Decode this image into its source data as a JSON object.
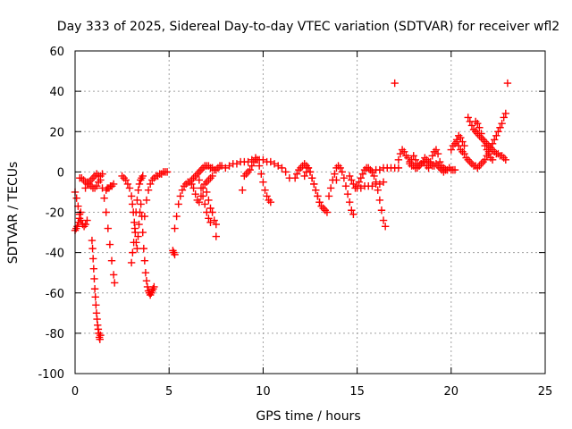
{
  "chart_data": {
    "type": "scatter",
    "title": "Day 333 of 2025, Sidereal Day-to-day VTEC variation (SDTVAR) for receiver wfl2",
    "xlabel": "GPS time / hours",
    "ylabel": "SDTVAR / TECUs",
    "xlim": [
      0,
      25
    ],
    "ylim": [
      -100,
      60
    ],
    "xticks": [
      0,
      5,
      10,
      15,
      20,
      25
    ],
    "yticks": [
      -100,
      -80,
      -60,
      -40,
      -20,
      0,
      20,
      40,
      60
    ],
    "xtick_labels": [
      "0",
      "5",
      "10",
      "15",
      "20",
      "25"
    ],
    "ytick_labels": [
      "-100",
      "-80",
      "-60",
      "-40",
      "-20",
      "0",
      "20",
      "40",
      "60"
    ],
    "grid": true,
    "marker": "+",
    "color": "#ff0000",
    "series": [
      {
        "x": [
          0.0,
          0.08,
          0.16,
          0.24,
          0.32,
          0.4,
          0.48,
          0.56,
          0.64
        ],
        "y": [
          -10,
          -13,
          -17,
          -21,
          -24,
          -26,
          -27,
          -26,
          -24
        ]
      },
      {
        "x": [
          0.0,
          0.06,
          0.12,
          0.18,
          0.24,
          0.3
        ],
        "y": [
          -29,
          -28,
          -27,
          -25,
          -23,
          -20
        ]
      },
      {
        "x": [
          0.25,
          0.35,
          0.45,
          0.55,
          0.65,
          0.75,
          0.85,
          0.95,
          1.05,
          1.15,
          1.25,
          1.35,
          1.45
        ],
        "y": [
          -3,
          -3,
          -4,
          -5,
          -5,
          -6,
          -7,
          -8,
          -8,
          -7,
          -5,
          -2,
          -1
        ]
      },
      {
        "x": [
          0.9,
          0.93,
          0.96,
          0.99,
          1.02,
          1.05,
          1.08,
          1.11,
          1.14,
          1.17,
          1.2,
          1.23,
          1.26,
          1.29,
          1.32,
          1.35
        ],
        "y": [
          -34,
          -38,
          -43,
          -48,
          -53,
          -58,
          -62,
          -66,
          -70,
          -73,
          -76,
          -78,
          -80,
          -82,
          -83,
          -81
        ]
      },
      {
        "x": [
          0.55,
          0.65,
          0.75,
          0.85,
          0.95,
          1.05,
          1.15,
          1.25,
          1.35,
          1.45,
          1.55,
          1.65,
          1.75,
          1.85,
          1.95,
          2.05,
          2.1
        ],
        "y": [
          -8,
          -6,
          -5,
          -4,
          -3,
          -2,
          -1,
          -2,
          -4,
          -8,
          -13,
          -20,
          -28,
          -36,
          -44,
          -51,
          -55
        ]
      },
      {
        "x": [
          1.65,
          1.72,
          1.8,
          1.88,
          1.96,
          2.05
        ],
        "y": [
          -9,
          -8,
          -8,
          -7,
          -7,
          -6
        ]
      },
      {
        "x": [
          2.5,
          2.6,
          2.7,
          2.8,
          2.9,
          3.0,
          3.05,
          3.1,
          3.15,
          3.2,
          3.25,
          3.3,
          3.35,
          3.4,
          3.45,
          3.5,
          3.55,
          3.6,
          3.65,
          3.7,
          3.75,
          3.8,
          3.85,
          3.9,
          3.95,
          4.0,
          4.05,
          4.1,
          4.15,
          4.2
        ],
        "y": [
          -2,
          -3,
          -4,
          -6,
          -8,
          -12,
          -16,
          -20,
          -25,
          -30,
          -35,
          -38,
          -32,
          -26,
          -20,
          -16,
          -22,
          -30,
          -38,
          -44,
          -50,
          -54,
          -57,
          -59,
          -60,
          -61,
          -60,
          -59,
          -58,
          -57
        ]
      },
      {
        "x": [
          3.0,
          3.06,
          3.12,
          3.18,
          3.24,
          3.3,
          3.36,
          3.42,
          3.48,
          3.54,
          3.6
        ],
        "y": [
          -45,
          -40,
          -35,
          -28,
          -20,
          -14,
          -9,
          -6,
          -4,
          -3,
          -2
        ]
      },
      {
        "x": [
          3.7,
          3.8,
          3.9,
          4.0,
          4.1,
          4.2,
          4.3,
          4.4,
          4.5,
          4.6,
          4.7,
          4.8,
          4.9
        ],
        "y": [
          -22,
          -14,
          -9,
          -6,
          -4,
          -3,
          -2,
          -2,
          -1,
          -1,
          0,
          0,
          0
        ]
      },
      {
        "x": [
          5.2,
          5.25,
          5.3
        ],
        "y": [
          -39,
          -40,
          -41
        ]
      },
      {
        "x": [
          5.3,
          5.4,
          5.5,
          5.6,
          5.7,
          5.8,
          5.9,
          6.0,
          6.1,
          6.2,
          6.3,
          6.4,
          6.5,
          6.6,
          6.7,
          6.8,
          6.9,
          7.0,
          7.1,
          7.2,
          7.3,
          7.4,
          7.5,
          7.6,
          7.7,
          7.8
        ],
        "y": [
          -28,
          -22,
          -16,
          -12,
          -9,
          -7,
          -6,
          -5,
          -5,
          -4,
          -3,
          -2,
          -1,
          0,
          1,
          2,
          3,
          3,
          3,
          2,
          2,
          1,
          1,
          2,
          3,
          3
        ]
      },
      {
        "x": [
          6.2,
          6.3,
          6.4,
          6.5,
          6.6,
          6.7,
          6.8,
          6.9,
          7.0,
          7.1,
          7.2,
          7.3
        ],
        "y": [
          -6,
          -8,
          -11,
          -14,
          -15,
          -12,
          -8,
          -6,
          -5,
          -4,
          -3,
          -2
        ]
      },
      {
        "x": [
          6.6,
          6.7,
          6.8,
          6.9,
          7.0,
          7.1,
          7.2
        ],
        "y": [
          -4,
          -8,
          -12,
          -16,
          -20,
          -23,
          -25
        ]
      },
      {
        "x": [
          7.0,
          7.1,
          7.2,
          7.3,
          7.4,
          7.5
        ],
        "y": [
          -10,
          -14,
          -18,
          -20,
          -24,
          -26
        ]
      },
      {
        "x": [
          7.5
        ],
        "y": [
          -32
        ]
      },
      {
        "x": [
          8.0,
          8.2,
          8.4,
          8.6,
          8.8,
          9.0,
          9.2,
          9.4,
          9.6,
          9.8,
          10.0,
          10.2,
          10.4,
          10.6,
          10.8,
          11.0,
          11.2,
          11.4
        ],
        "y": [
          2,
          3,
          4,
          4,
          5,
          5,
          5,
          6,
          6,
          6,
          6,
          5,
          5,
          4,
          3,
          2,
          0,
          -3
        ]
      },
      {
        "x": [
          8.9
        ],
        "y": [
          -9
        ]
      },
      {
        "x": [
          9.0,
          9.1,
          9.2,
          9.3,
          9.4,
          9.5,
          9.6,
          9.7,
          9.8,
          9.9,
          10.0,
          10.1,
          10.2,
          10.3,
          10.4
        ],
        "y": [
          -2,
          -1,
          0,
          1,
          3,
          5,
          7,
          6,
          3,
          -1,
          -5,
          -9,
          -12,
          -14,
          -15
        ]
      },
      {
        "x": [
          11.7,
          11.8,
          11.9,
          12.0,
          12.1,
          12.2,
          12.3,
          12.4,
          12.5,
          12.6,
          12.7,
          12.8,
          12.9,
          13.0,
          13.1,
          13.2,
          13.3,
          13.4
        ],
        "y": [
          -3,
          -1,
          1,
          2,
          3,
          4,
          3,
          2,
          0,
          -3,
          -6,
          -9,
          -12,
          -15,
          -17,
          -18,
          -19,
          -20
        ]
      },
      {
        "x": [
          12.2,
          12.3,
          12.4,
          12.5,
          12.6,
          12.7,
          12.8,
          12.9,
          13.0
        ],
        "y": [
          -2,
          0,
          2,
          0,
          -3,
          -6,
          -9,
          -12,
          -15
        ]
      },
      {
        "x": [
          13.5,
          13.6,
          13.7,
          13.8,
          13.9,
          14.0,
          14.1,
          14.2,
          14.3,
          14.4,
          14.5,
          14.6,
          14.7,
          14.8
        ],
        "y": [
          -12,
          -8,
          -4,
          -1,
          2,
          3,
          2,
          0,
          -3,
          -7,
          -11,
          -15,
          -19,
          -21
        ]
      },
      {
        "x": [
          13.9
        ],
        "y": [
          -4
        ]
      },
      {
        "x": [
          14.6,
          14.7,
          14.8,
          14.9,
          15.0,
          15.1,
          15.2,
          15.3,
          15.4,
          15.5,
          15.6,
          15.7,
          15.8,
          15.9,
          16.0,
          16.1,
          16.2,
          16.3,
          16.4,
          16.5
        ],
        "y": [
          -2,
          -4,
          -6,
          -8,
          -7,
          -5,
          -3,
          -1,
          1,
          2,
          2,
          1,
          0,
          -2,
          -5,
          -9,
          -14,
          -19,
          -24,
          -27
        ]
      },
      {
        "x": [
          15.0,
          15.2,
          15.4,
          15.6,
          15.8,
          16.0,
          16.2,
          16.4
        ],
        "y": [
          -8,
          -8,
          -7,
          -7,
          -7,
          -6,
          -6,
          -5
        ]
      },
      {
        "x": [
          15.8,
          16.0,
          16.2,
          16.4,
          16.6,
          16.8,
          17.0,
          17.2
        ],
        "y": [
          0,
          1,
          1,
          2,
          2,
          2,
          2,
          2
        ]
      },
      {
        "x": [
          17.0
        ],
        "y": [
          44
        ]
      },
      {
        "x": [
          17.2,
          17.3,
          17.4,
          17.5,
          17.6,
          17.7,
          17.8,
          17.9,
          18.0,
          18.1,
          18.2,
          18.3,
          18.4,
          18.5,
          18.6,
          18.7,
          18.8,
          18.9,
          19.0,
          19.1,
          19.2,
          19.3,
          19.4,
          19.5,
          19.6,
          19.7,
          19.8,
          19.9,
          20.0,
          20.1,
          20.2
        ],
        "y": [
          6,
          9,
          11,
          10,
          8,
          7,
          5,
          6,
          8,
          6,
          4,
          3,
          4,
          5,
          7,
          3,
          2,
          5,
          8,
          10,
          11,
          9,
          5,
          3,
          2,
          1,
          1,
          2,
          1,
          1,
          1
        ]
      },
      {
        "x": [
          17.8,
          17.9,
          18.0,
          18.1,
          18.2,
          18.3,
          18.4,
          18.5,
          18.6,
          18.7,
          18.8,
          18.9,
          19.0,
          19.1,
          19.2,
          19.3,
          19.4,
          19.5,
          19.6,
          19.7
        ],
        "y": [
          4,
          3,
          3,
          2,
          2,
          3,
          4,
          5,
          5,
          6,
          5,
          4,
          3,
          3,
          4,
          3,
          2,
          1,
          0,
          1
        ]
      },
      {
        "x": [
          20.0,
          20.1,
          20.2,
          20.3,
          20.4,
          20.5,
          20.6,
          20.7,
          20.8,
          20.9,
          21.0,
          21.1,
          21.2,
          21.3,
          21.4,
          21.5,
          21.6,
          21.7,
          21.8,
          21.9,
          22.0,
          22.1,
          22.2,
          22.3,
          22.4,
          22.5,
          22.6,
          22.7,
          22.8,
          22.9
        ],
        "y": [
          11,
          13,
          14,
          15,
          13,
          11,
          10,
          9,
          7,
          6,
          5,
          4,
          3,
          3,
          2,
          3,
          4,
          5,
          6,
          8,
          10,
          12,
          14,
          16,
          18,
          20,
          22,
          24,
          27,
          29
        ]
      },
      {
        "x": [
          20.3,
          20.4,
          20.5,
          20.6,
          20.7
        ],
        "y": [
          16,
          18,
          17,
          15,
          13
        ]
      },
      {
        "x": [
          20.9,
          21.0,
          21.1,
          21.2,
          21.3,
          21.4,
          21.5,
          21.6,
          21.7,
          21.8,
          21.9,
          22.0,
          22.1,
          22.2,
          22.3,
          22.4,
          22.5,
          22.6,
          22.7,
          22.8,
          22.9
        ],
        "y": [
          27,
          25,
          23,
          21,
          20,
          19,
          18,
          17,
          16,
          15,
          14,
          13,
          12,
          11,
          10,
          9,
          9,
          8,
          8,
          7,
          6
        ]
      },
      {
        "x": [
          21.3,
          21.4,
          21.5,
          21.6,
          21.7,
          21.8,
          21.9,
          22.0,
          22.1,
          22.2
        ],
        "y": [
          25,
          24,
          22,
          19,
          16,
          13,
          11,
          9,
          7,
          6
        ]
      },
      {
        "x": [
          23.0
        ],
        "y": [
          44
        ]
      }
    ]
  }
}
